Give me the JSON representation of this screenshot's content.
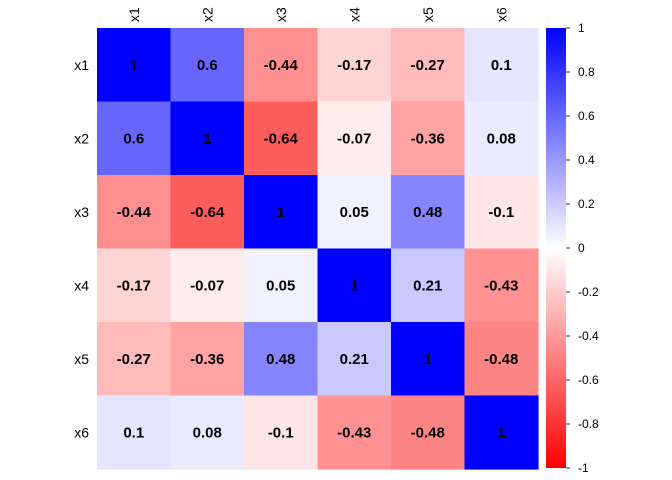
{
  "chart_data": {
    "type": "heatmap",
    "title": "",
    "rows": [
      "x1",
      "x2",
      "x3",
      "x4",
      "x5",
      "x6"
    ],
    "columns": [
      "x1",
      "x2",
      "x3",
      "x4",
      "x5",
      "x6"
    ],
    "values": [
      [
        1,
        0.6,
        -0.44,
        -0.17,
        -0.27,
        0.1
      ],
      [
        0.6,
        1,
        -0.64,
        -0.07,
        -0.36,
        0.08
      ],
      [
        -0.44,
        -0.64,
        1,
        0.05,
        0.48,
        -0.1
      ],
      [
        -0.17,
        -0.07,
        0.05,
        1,
        0.21,
        -0.43
      ],
      [
        -0.27,
        -0.36,
        0.48,
        0.21,
        1,
        -0.48
      ],
      [
        0.1,
        0.08,
        -0.1,
        -0.43,
        -0.48,
        1
      ]
    ],
    "value_range": [
      -1,
      1
    ],
    "colorscale": {
      "low": "#ff0000",
      "mid": "#ffffff",
      "high": "#0000ff"
    },
    "colorbar": {
      "ticks": [
        1,
        0.8,
        0.6,
        0.4,
        0.2,
        0,
        -0.2,
        -0.4,
        -0.6,
        -0.8,
        -1
      ],
      "tick_labels": [
        "1",
        "0.8",
        "0.6",
        "0.4",
        "0.2",
        "0",
        "-0.2",
        "-0.4",
        "-0.6",
        "-0.8",
        "-1"
      ]
    }
  }
}
